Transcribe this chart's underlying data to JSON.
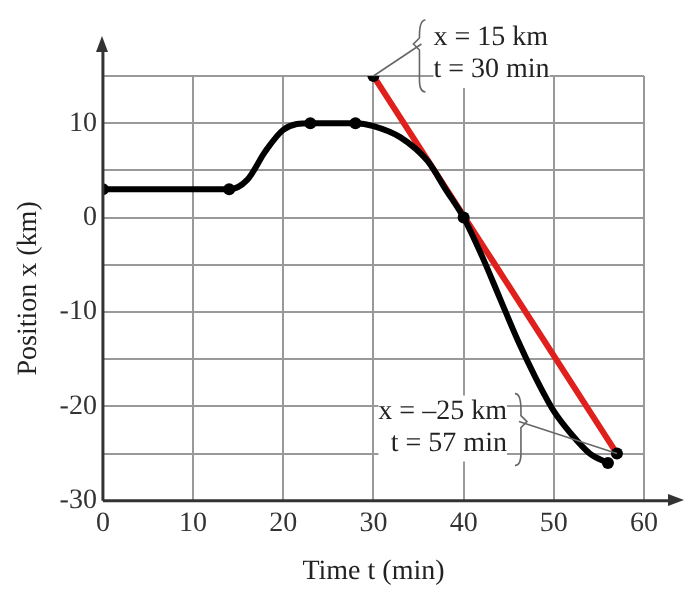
{
  "chart_data": {
    "type": "line",
    "xlabel": "Time t (min)",
    "ylabel": "Position x (km)",
    "x": [
      0,
      14,
      16,
      18,
      20,
      23,
      28,
      30,
      33,
      36,
      38,
      40,
      42,
      44,
      46,
      48,
      50,
      52,
      54,
      56
    ],
    "series": [
      {
        "color": "#000000",
        "values": [
          3,
          3,
          4,
          7,
          9.3,
          10,
          10,
          9.7,
          8.5,
          6,
          3,
          0,
          -4,
          -8.5,
          -13,
          -17,
          -20.5,
          -23,
          -25,
          -26
        ],
        "marker": "none"
      },
      {
        "color": "#e0201c",
        "x": [
          30,
          57
        ],
        "values": [
          15,
          -25
        ],
        "marker": "none"
      },
      {
        "type": "scatter",
        "color": "#000000",
        "x": [
          0,
          14,
          23,
          28,
          30,
          40,
          56,
          57
        ],
        "values": [
          3,
          3,
          10,
          10,
          15,
          0,
          -26,
          -25
        ],
        "marker": "circle"
      }
    ],
    "xlim": [
      0,
      60
    ],
    "xticks": [
      0,
      10,
      20,
      30,
      40,
      50,
      60
    ],
    "ylim": [
      -30,
      15
    ],
    "yticks": [
      -30,
      {
        "value": -25,
        "label": null
      },
      -20,
      {
        "value": -15,
        "label": null
      },
      -10,
      {
        "value": -5,
        "label": null
      },
      0,
      {
        "value": 5,
        "label": null
      },
      10,
      {
        "value": 15,
        "label": null
      }
    ],
    "grid": true,
    "legend": false,
    "line_style": "solid",
    "annotations": [
      {
        "text": "x = 15 km\nt = 30 min",
        "x": 30,
        "y": 15
      },
      {
        "text": "x = –25 km\nt = 57 min",
        "x": 57,
        "y": -25
      }
    ]
  }
}
